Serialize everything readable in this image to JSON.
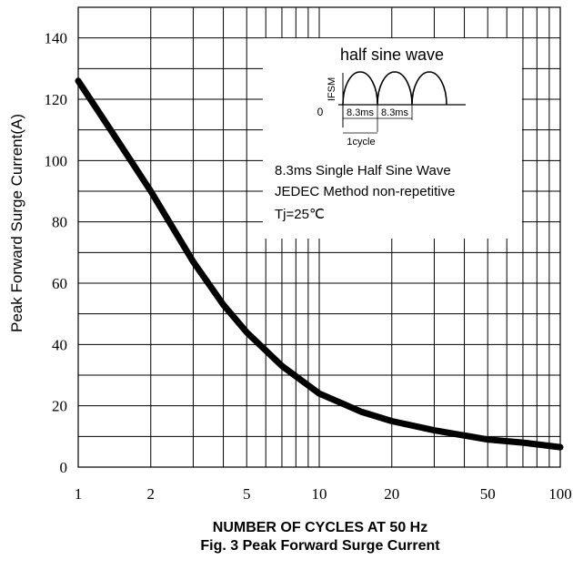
{
  "chart_data": {
    "type": "line",
    "xscale": "log",
    "xlim": [
      1,
      100
    ],
    "ylim": [
      0,
      150
    ],
    "grid": true,
    "xticks": [
      "1",
      "2",
      "5",
      "10",
      "20",
      "50",
      "100"
    ],
    "xtick_values": [
      1,
      2,
      5,
      10,
      20,
      50,
      100
    ],
    "yticks": [
      "0",
      "20",
      "40",
      "60",
      "80",
      "100",
      "120",
      "140"
    ],
    "ytick_values": [
      0,
      20,
      40,
      60,
      80,
      100,
      120,
      140
    ],
    "xlabel": "NUMBER OF CYCLES AT 50 Hz",
    "ylabel": "Peak Forward Surge Current(A)",
    "caption": "Fig. 3 Peak Forward Surge Current",
    "series": [
      {
        "x": [
          1,
          1.5,
          2,
          3,
          4,
          5,
          7,
          10,
          15,
          20,
          30,
          50,
          70,
          100
        ],
        "y": [
          126,
          105,
          90,
          67,
          53,
          44,
          33,
          24,
          18,
          15,
          12,
          9,
          8,
          6.5
        ]
      }
    ],
    "inset": {
      "title": "half sine wave",
      "ifsm_label": "IFSM",
      "zero_label": "0",
      "period_labels": [
        "8.3ms",
        "8.3ms"
      ],
      "cycle_label": "1cycle",
      "notes": [
        "8.3ms Single Half Sine Wave",
        "JEDEC Method non-repetitive",
        "Tj=25℃"
      ]
    }
  },
  "colors": {
    "line": "#000000",
    "grid": "#000000",
    "background": "#ffffff"
  }
}
